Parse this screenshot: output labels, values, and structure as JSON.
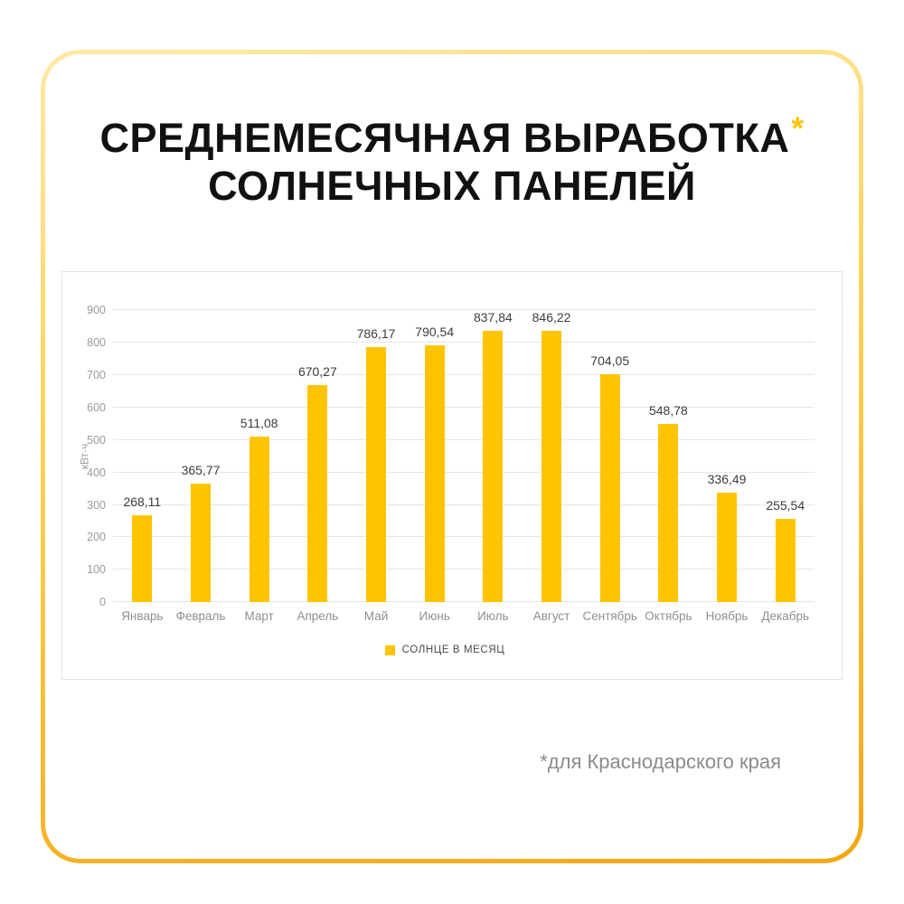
{
  "header": {
    "title_line1": "СРЕДНЕМЕСЯЧНАЯ ВЫРАБОТКА",
    "title_asterisk": "*",
    "title_line2": "СОЛНЕЧНЫХ ПАНЕЛЕЙ"
  },
  "footer": {
    "note": "*для Краснодарского края"
  },
  "colors": {
    "bar": "#ffc400",
    "accent_asterisk": "#ffc400",
    "border_gradient_start": "#ffe9a6",
    "border_gradient_end": "#f2a713",
    "grid": "#e6e6e6",
    "axis_text": "#9a9a9a"
  },
  "chart_data": {
    "type": "bar",
    "title": "СРЕДНЕМЕСЯЧНАЯ ВЫРАБОТКА СОЛНЕЧНЫХ ПАНЕЛЕЙ",
    "xlabel": "",
    "ylabel": "кВт·ч",
    "ylim": [
      0,
      900
    ],
    "ytick_step": 100,
    "grid": true,
    "legend": "СОЛНЦЕ В МЕСЯЦ",
    "legend_position": "bottom",
    "categories": [
      "Январь",
      "Февраль",
      "Март",
      "Апрель",
      "Май",
      "Июнь",
      "Июль",
      "Август",
      "Сентябрь",
      "Октябрь",
      "Ноябрь",
      "Декабрь"
    ],
    "values": [
      268.11,
      365.77,
      511.08,
      670.27,
      786.17,
      790.54,
      837.84,
      846.22,
      704.05,
      548.78,
      336.49,
      255.54
    ],
    "value_labels": [
      "268,11",
      "365,77",
      "511,08",
      "670,27",
      "786,17",
      "790,54",
      "837,84",
      "846,22",
      "704,05",
      "548,78",
      "336,49",
      "255,54"
    ]
  }
}
